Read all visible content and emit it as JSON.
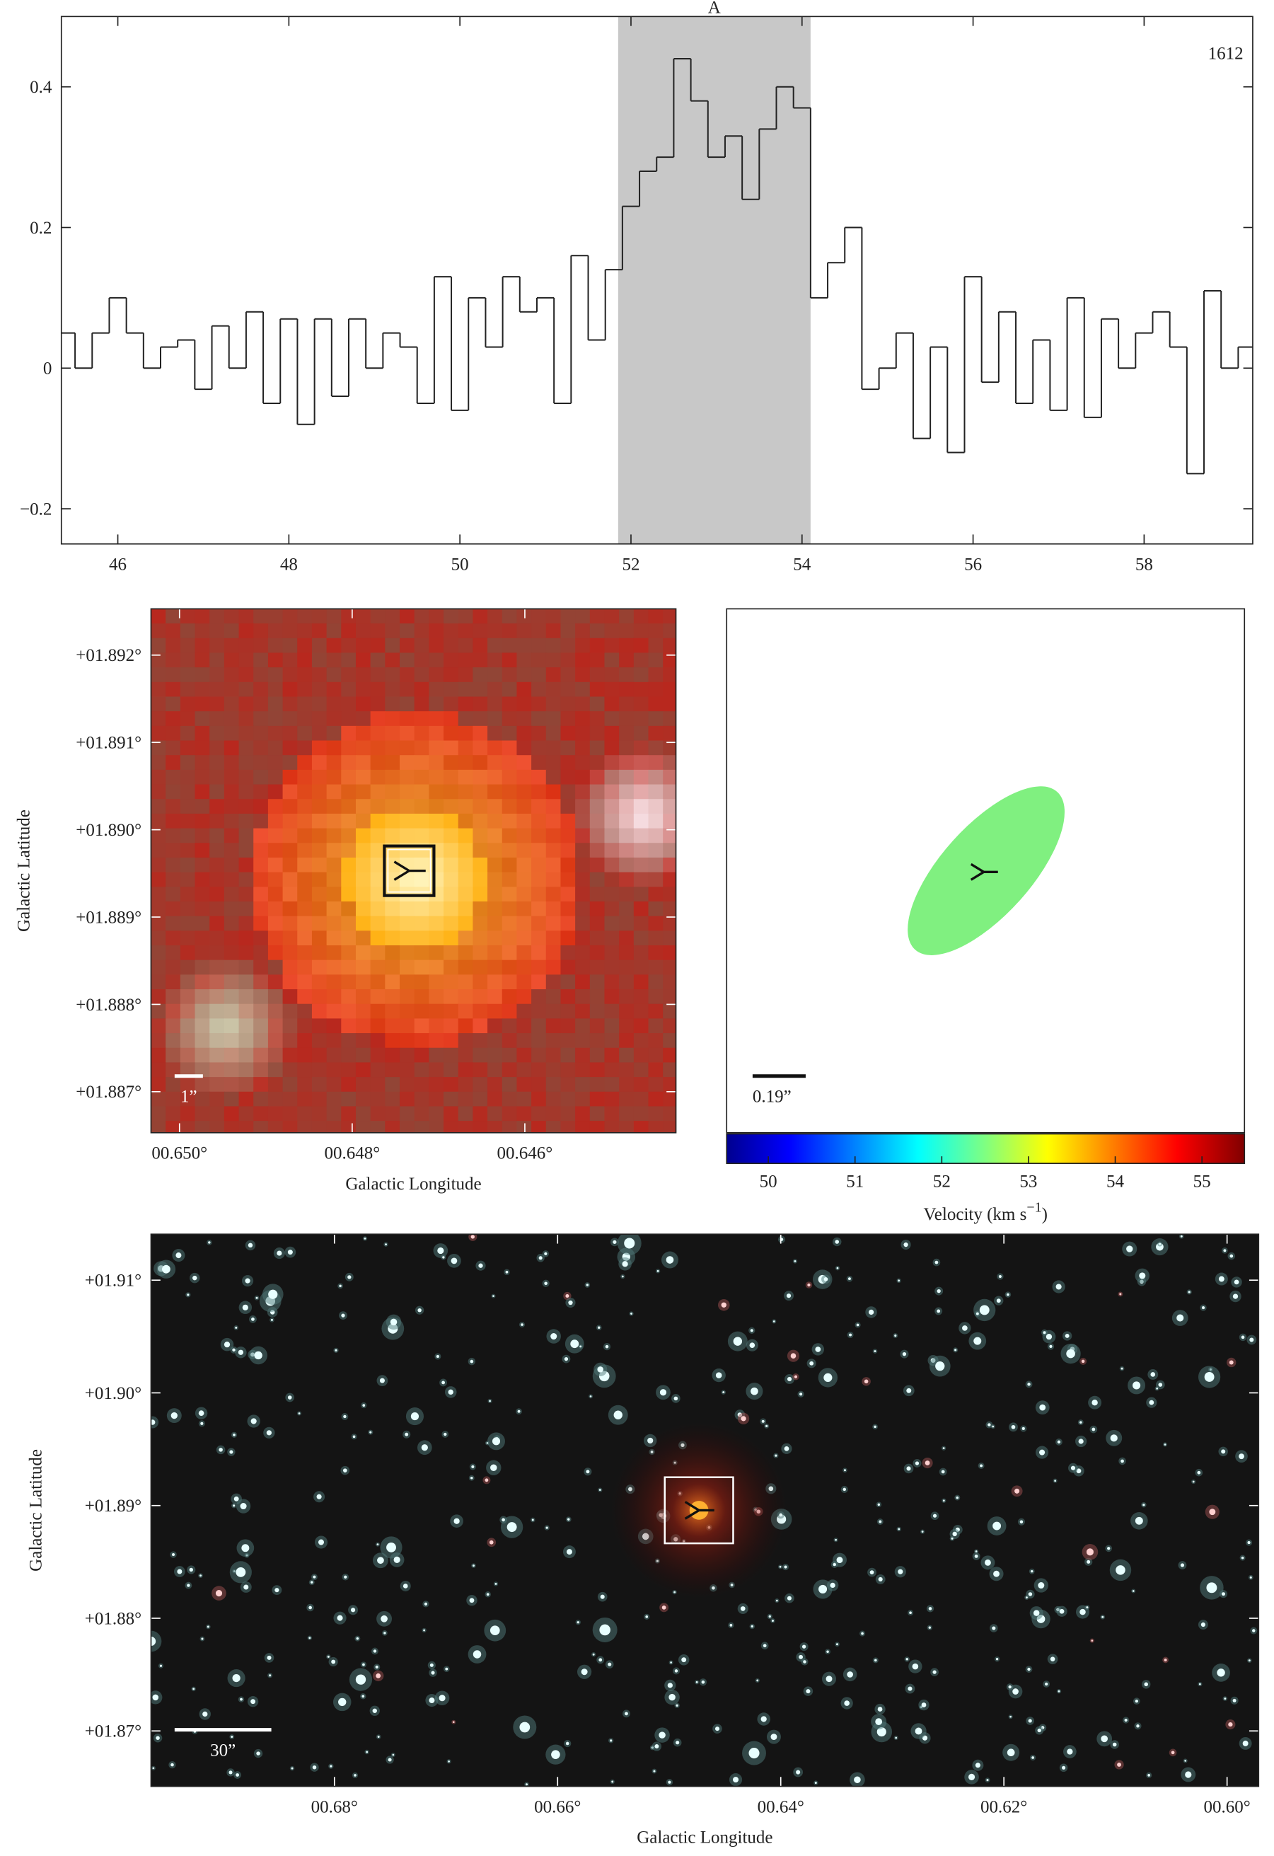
{
  "chart_data": [
    {
      "type": "step",
      "label": "A",
      "annotation": "1612",
      "shade": [
        51.85,
        54.1
      ],
      "shade_color": "#c8c8c8",
      "color": "#222222",
      "x": [
        45.4,
        45.6,
        45.8,
        46.0,
        46.2,
        46.4,
        46.6,
        46.8,
        47.0,
        47.2,
        47.4,
        47.6,
        47.8,
        48.0,
        48.2,
        48.4,
        48.6,
        48.8,
        49.0,
        49.2,
        49.4,
        49.6,
        49.8,
        50.0,
        50.2,
        50.4,
        50.6,
        50.8,
        51.0,
        51.2,
        51.4,
        51.6,
        51.8,
        52.0,
        52.2,
        52.4,
        52.6,
        52.8,
        53.0,
        53.2,
        53.4,
        53.6,
        53.8,
        54.0,
        54.2,
        54.4,
        54.6,
        54.8,
        55.0,
        55.2,
        55.4,
        55.6,
        55.8,
        56.0,
        56.2,
        56.4,
        56.6,
        56.8,
        57.0,
        57.2,
        57.4,
        57.6,
        57.8,
        58.0,
        58.2,
        58.4,
        58.6,
        58.8,
        59.0,
        59.2
      ],
      "values": [
        0.05,
        0.0,
        0.05,
        0.1,
        0.05,
        0.0,
        0.03,
        0.04,
        -0.03,
        0.06,
        0.0,
        0.08,
        -0.05,
        0.07,
        -0.08,
        0.07,
        -0.04,
        0.07,
        0.0,
        0.05,
        0.03,
        -0.05,
        0.13,
        -0.06,
        0.1,
        0.03,
        0.13,
        0.08,
        0.1,
        -0.05,
        0.16,
        0.04,
        0.14,
        0.23,
        0.28,
        0.3,
        0.44,
        0.38,
        0.3,
        0.33,
        0.24,
        0.34,
        0.4,
        0.37,
        0.1,
        0.15,
        0.2,
        -0.03,
        0.0,
        0.05,
        -0.1,
        0.03,
        -0.12,
        0.13,
        -0.02,
        0.08,
        -0.05,
        0.04,
        -0.06,
        0.1,
        -0.07,
        0.07,
        0.0,
        0.05,
        0.08,
        0.03,
        -0.15,
        0.11,
        0.0,
        0.03
      ],
      "xlim": [
        45.34,
        59.27
      ],
      "ylim": [
        -0.25,
        0.5
      ],
      "xticks": [
        46,
        48,
        50,
        52,
        54,
        56,
        58
      ],
      "yticks": [
        {
          "value": -0.2,
          "label": "−0.2"
        },
        0,
        0.2,
        0.4
      ]
    },
    {
      "type": "image",
      "xlabel": "Galactic Longitude",
      "ylabel": "Galactic Latitude",
      "scale_bar": "1”",
      "xlim": [
        0.65033,
        0.64425
      ],
      "ylim": [
        1.88653,
        1.89253
      ],
      "xticks": [
        {
          "value": 0.65,
          "label": "00.650°"
        },
        {
          "value": 0.648,
          "label": "00.648°"
        },
        {
          "value": 0.646,
          "label": "00.646°"
        }
      ],
      "yticks": [
        {
          "value": 1.887,
          "label": "+01.887°"
        },
        {
          "value": 1.888,
          "label": "+01.888°"
        },
        {
          "value": 1.889,
          "label": "+01.889°"
        },
        {
          "value": 1.89,
          "label": "+01.890°"
        },
        {
          "value": 1.891,
          "label": "+01.891°"
        },
        {
          "value": 1.892,
          "label": "+01.892°"
        }
      ],
      "marker": {
        "x": 0.64734,
        "y": 1.88953
      }
    },
    {
      "type": "ellipse",
      "color": "#80f080",
      "scale_bar": "0.19”",
      "colorbar": {
        "label": "Velocity (km s",
        "superscript": "−1",
        "close": ")",
        "lim": [
          49.52,
          55.49
        ],
        "ticks": [
          50,
          51,
          52,
          53,
          54,
          55
        ]
      }
    },
    {
      "type": "image",
      "xlabel": "Galactic Longitude",
      "ylabel": "Galactic Latitude",
      "scale_bar": "30”",
      "xlim": [
        0.69644,
        0.59717
      ],
      "ylim": [
        1.86508,
        1.91408
      ],
      "xticks": [
        {
          "value": 0.68,
          "label": "00.68°"
        },
        {
          "value": 0.66,
          "label": "00.66°"
        },
        {
          "value": 0.64,
          "label": "00.64°"
        },
        {
          "value": 0.62,
          "label": "00.62°"
        },
        {
          "value": 0.6,
          "label": "00.60°"
        }
      ],
      "yticks": [
        {
          "value": 1.87,
          "label": "+01.87°"
        },
        {
          "value": 1.88,
          "label": "+01.88°"
        },
        {
          "value": 1.89,
          "label": "+01.89°"
        },
        {
          "value": 1.9,
          "label": "+01.90°"
        },
        {
          "value": 1.91,
          "label": "+01.91°"
        }
      ],
      "marker": {
        "x": 0.64733,
        "y": 1.88958
      }
    }
  ]
}
